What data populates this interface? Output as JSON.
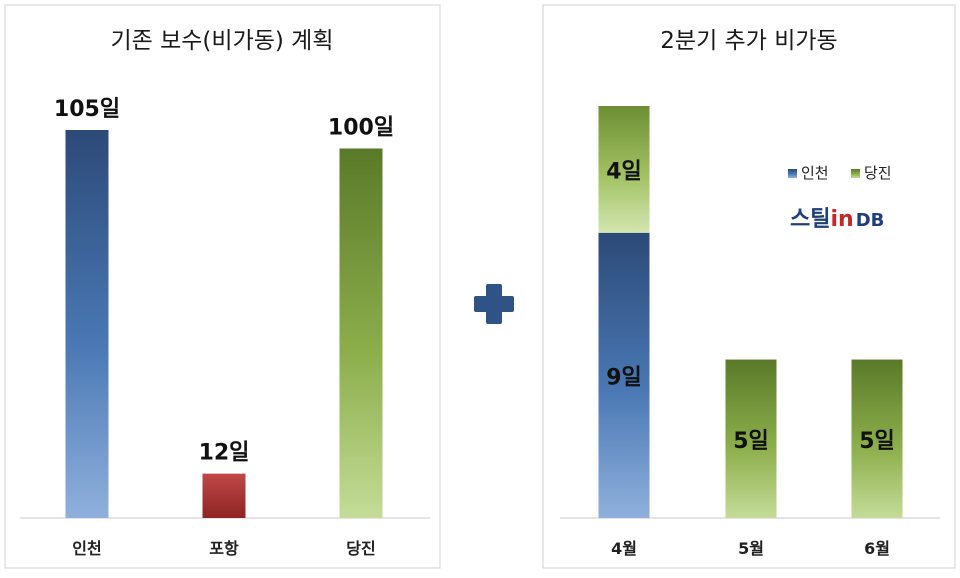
{
  "chart_data": [
    {
      "type": "bar",
      "title": "기존 보수(비가동) 계획",
      "categories": [
        "인천",
        "포항",
        "당진"
      ],
      "values": [
        105,
        12,
        100
      ],
      "data_labels": [
        "105일",
        "12일",
        "100일"
      ],
      "colors": [
        "#3f6ca8",
        "#b23a3a",
        "#7a9e3c"
      ],
      "ylim": [
        0,
        110
      ],
      "grid": false,
      "legend": "none"
    },
    {
      "type": "bar",
      "stacked": true,
      "title": "2분기 추가 비가동",
      "categories": [
        "4월",
        "5월",
        "6월"
      ],
      "series": [
        {
          "name": "인천",
          "values": [
            9,
            0,
            0
          ],
          "data_labels": [
            "9일",
            "",
            ""
          ],
          "color": "#3f6ca8"
        },
        {
          "name": "당진",
          "values": [
            4,
            5,
            5
          ],
          "data_labels": [
            "4일",
            "5일",
            "5일"
          ],
          "color": "#7a9e3c"
        }
      ],
      "ylim": [
        0,
        14
      ],
      "grid": false,
      "legend": "top-right",
      "logo": "스틸in DB"
    }
  ],
  "separator": "+"
}
